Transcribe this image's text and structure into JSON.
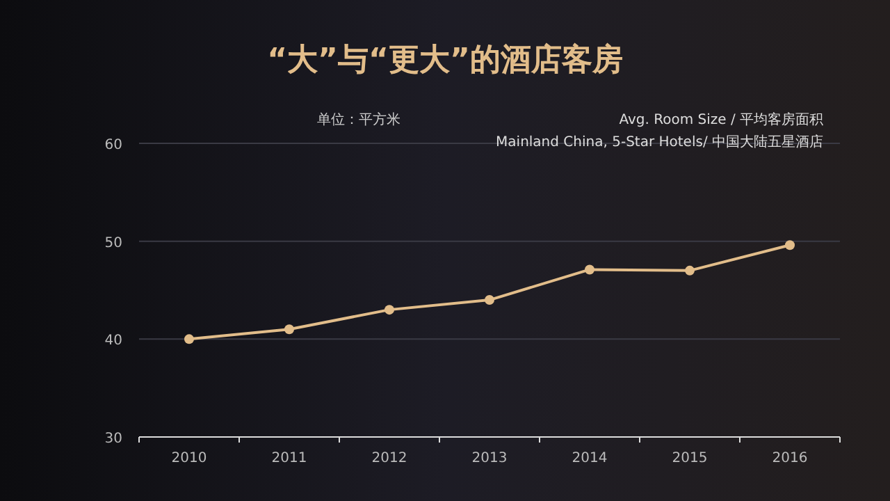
{
  "chart_data": {
    "type": "line",
    "title": "“大”与“更大”的酒店客房",
    "categories": [
      "2010",
      "2011",
      "2012",
      "2013",
      "2014",
      "2015",
      "2016"
    ],
    "series": [
      {
        "color": "#e2bd8a",
        "values": [
          40,
          41,
          43,
          44,
          47.1,
          47,
          49.6
        ]
      }
    ],
    "ylim": [
      30,
      60
    ],
    "yticks": [
      30,
      40,
      50,
      60
    ],
    "grid": "y",
    "marker": "circle",
    "line_style": "solid",
    "annotations": [
      "单位：平方米",
      "Avg. Room Size  / 平均客房面积",
      "Mainland China, 5-Star  Hotels/ 中国大陆五星酒店"
    ]
  }
}
